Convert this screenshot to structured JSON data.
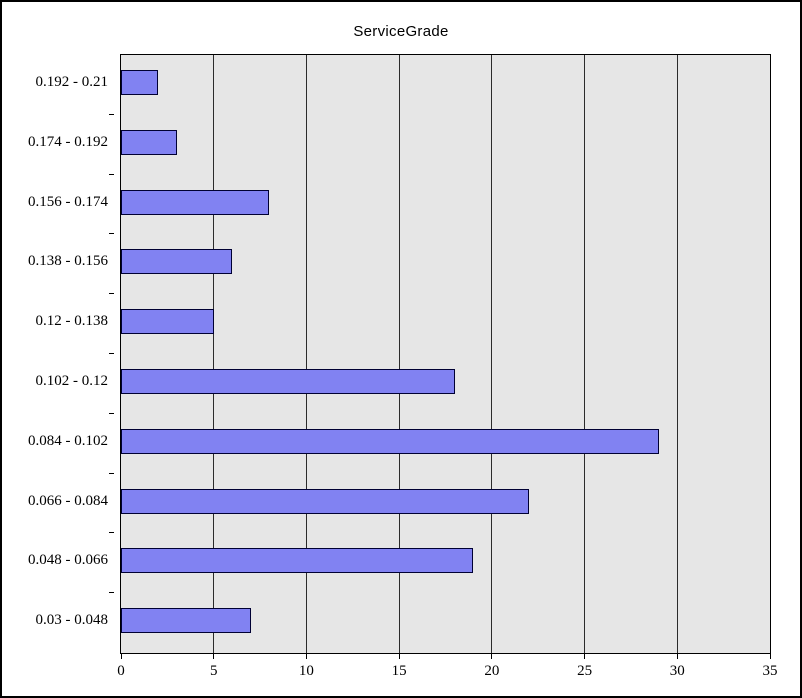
{
  "chart_data": {
    "type": "bar",
    "orientation": "horizontal",
    "title": "ServiceGrade",
    "categories": [
      "0.192 - 0.21",
      "0.174 - 0.192",
      "0.156 - 0.174",
      "0.138 - 0.156",
      "0.12 - 0.138",
      "0.102 - 0.12",
      "0.084 - 0.102",
      "0.066 - 0.084",
      "0.048 - 0.066",
      "0.03 - 0.048"
    ],
    "values": [
      2,
      3,
      8,
      6,
      5,
      18,
      29,
      22,
      19,
      7
    ],
    "xlabel": "",
    "ylabel": "",
    "xlim": [
      0,
      35
    ],
    "xticks": [
      0,
      5,
      10,
      15,
      20,
      25,
      30,
      35
    ],
    "grid": true,
    "legend": false,
    "colors": {
      "bar_fill": "#8182f2",
      "bar_border": "#000033",
      "plot_bg": "#e6e6e6",
      "gridline": "#2b2b2b",
      "axis": "#000000",
      "frame": "#000000"
    }
  }
}
